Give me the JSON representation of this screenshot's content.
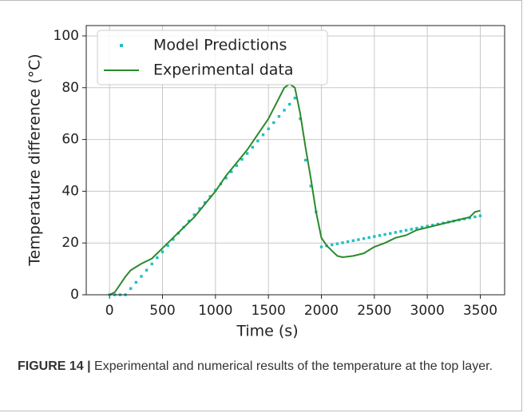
{
  "chart_data": {
    "type": "line",
    "xlabel": "Time (s)",
    "ylabel": "Temperature difference (°C)",
    "xlim": [
      -220,
      3730
    ],
    "ylim": [
      0,
      104
    ],
    "xticks": [
      0,
      500,
      1000,
      1500,
      2000,
      2500,
      3000,
      3500
    ],
    "yticks": [
      0,
      20,
      40,
      60,
      80,
      100
    ],
    "grid": true,
    "legend": "upper left",
    "series": [
      {
        "name": "Model Predictions",
        "color": "#1fbfc4",
        "style": "dots",
        "x": [
          0,
          50,
          100,
          150,
          200,
          250,
          300,
          350,
          400,
          450,
          500,
          550,
          600,
          650,
          700,
          750,
          800,
          850,
          900,
          950,
          1000,
          1050,
          1100,
          1150,
          1200,
          1250,
          1300,
          1350,
          1400,
          1450,
          1500,
          1550,
          1600,
          1650,
          1700,
          1750,
          1800,
          1850,
          1900,
          1950,
          2000,
          2050,
          2100,
          2150,
          2200,
          2250,
          2300,
          2350,
          2400,
          2450,
          2500,
          2550,
          2600,
          2650,
          2700,
          2750,
          2800,
          2850,
          2900,
          2950,
          3000,
          3050,
          3100,
          3150,
          3200,
          3250,
          3300,
          3350,
          3400,
          3450,
          3500
        ],
        "values": [
          0,
          0,
          0,
          0,
          2.4,
          4.8,
          7.1,
          9.5,
          11.9,
          14.3,
          16.6,
          19,
          21.4,
          23.8,
          26.1,
          28.5,
          30.9,
          33.3,
          35.6,
          38,
          40.4,
          42.8,
          45.1,
          47.5,
          49.9,
          52.3,
          54.6,
          57,
          59.4,
          61.8,
          64.1,
          66.5,
          68.9,
          71.3,
          73.6,
          76,
          68,
          52,
          42,
          32,
          18.5,
          18.9,
          19.3,
          19.7,
          20.1,
          20.5,
          20.9,
          21.3,
          21.7,
          22.1,
          22.5,
          22.9,
          23.3,
          23.7,
          24.1,
          24.5,
          24.9,
          25.3,
          25.7,
          26.1,
          26.5,
          26.9,
          27.3,
          27.7,
          28.1,
          28.5,
          28.9,
          29.3,
          29.7,
          30.1,
          30.5
        ]
      },
      {
        "name": "Experimental data",
        "color": "#2a8a2a",
        "style": "line",
        "x": [
          0,
          50,
          100,
          150,
          200,
          300,
          400,
          500,
          600,
          700,
          800,
          900,
          1000,
          1100,
          1200,
          1300,
          1400,
          1500,
          1600,
          1650,
          1700,
          1750,
          1800,
          1850,
          1900,
          1950,
          2000,
          2050,
          2100,
          2150,
          2200,
          2300,
          2400,
          2500,
          2600,
          2700,
          2800,
          2900,
          3000,
          3100,
          3200,
          3300,
          3400,
          3450,
          3500
        ],
        "values": [
          0,
          1,
          4,
          7,
          9.5,
          12,
          14,
          18,
          22,
          26,
          30,
          35,
          40,
          46,
          51,
          56,
          62,
          68,
          76,
          80,
          81.5,
          80,
          70,
          57,
          45,
          32,
          22,
          19,
          17,
          15,
          14.5,
          15,
          16,
          18.5,
          20,
          22,
          23,
          25,
          26,
          27,
          28,
          29,
          30,
          32,
          32.5
        ]
      }
    ]
  },
  "caption": {
    "label": "FIGURE 14 |",
    "text": " Experimental and numerical results of the temperature at the top layer."
  }
}
